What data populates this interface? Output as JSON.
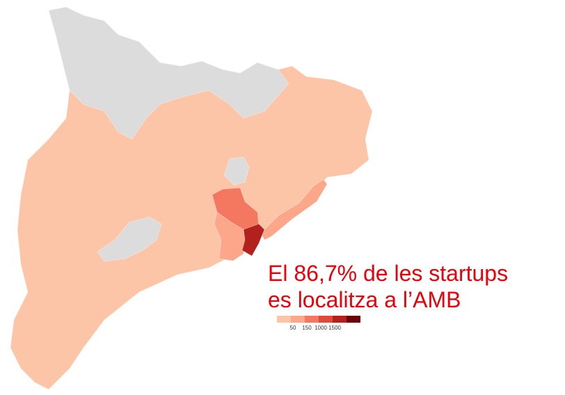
{
  "annotation": {
    "lines": [
      "El 86,7% de les startups",
      "es localitza a l’AMB"
    ],
    "color": "#e8000b"
  },
  "legend": {
    "colors": [
      "#fcc5a8",
      "#fca68a",
      "#f4785f",
      "#de4a3a",
      "#b3211f",
      "#6b0009"
    ],
    "labels": [
      50,
      150,
      1000,
      1500
    ]
  }
}
